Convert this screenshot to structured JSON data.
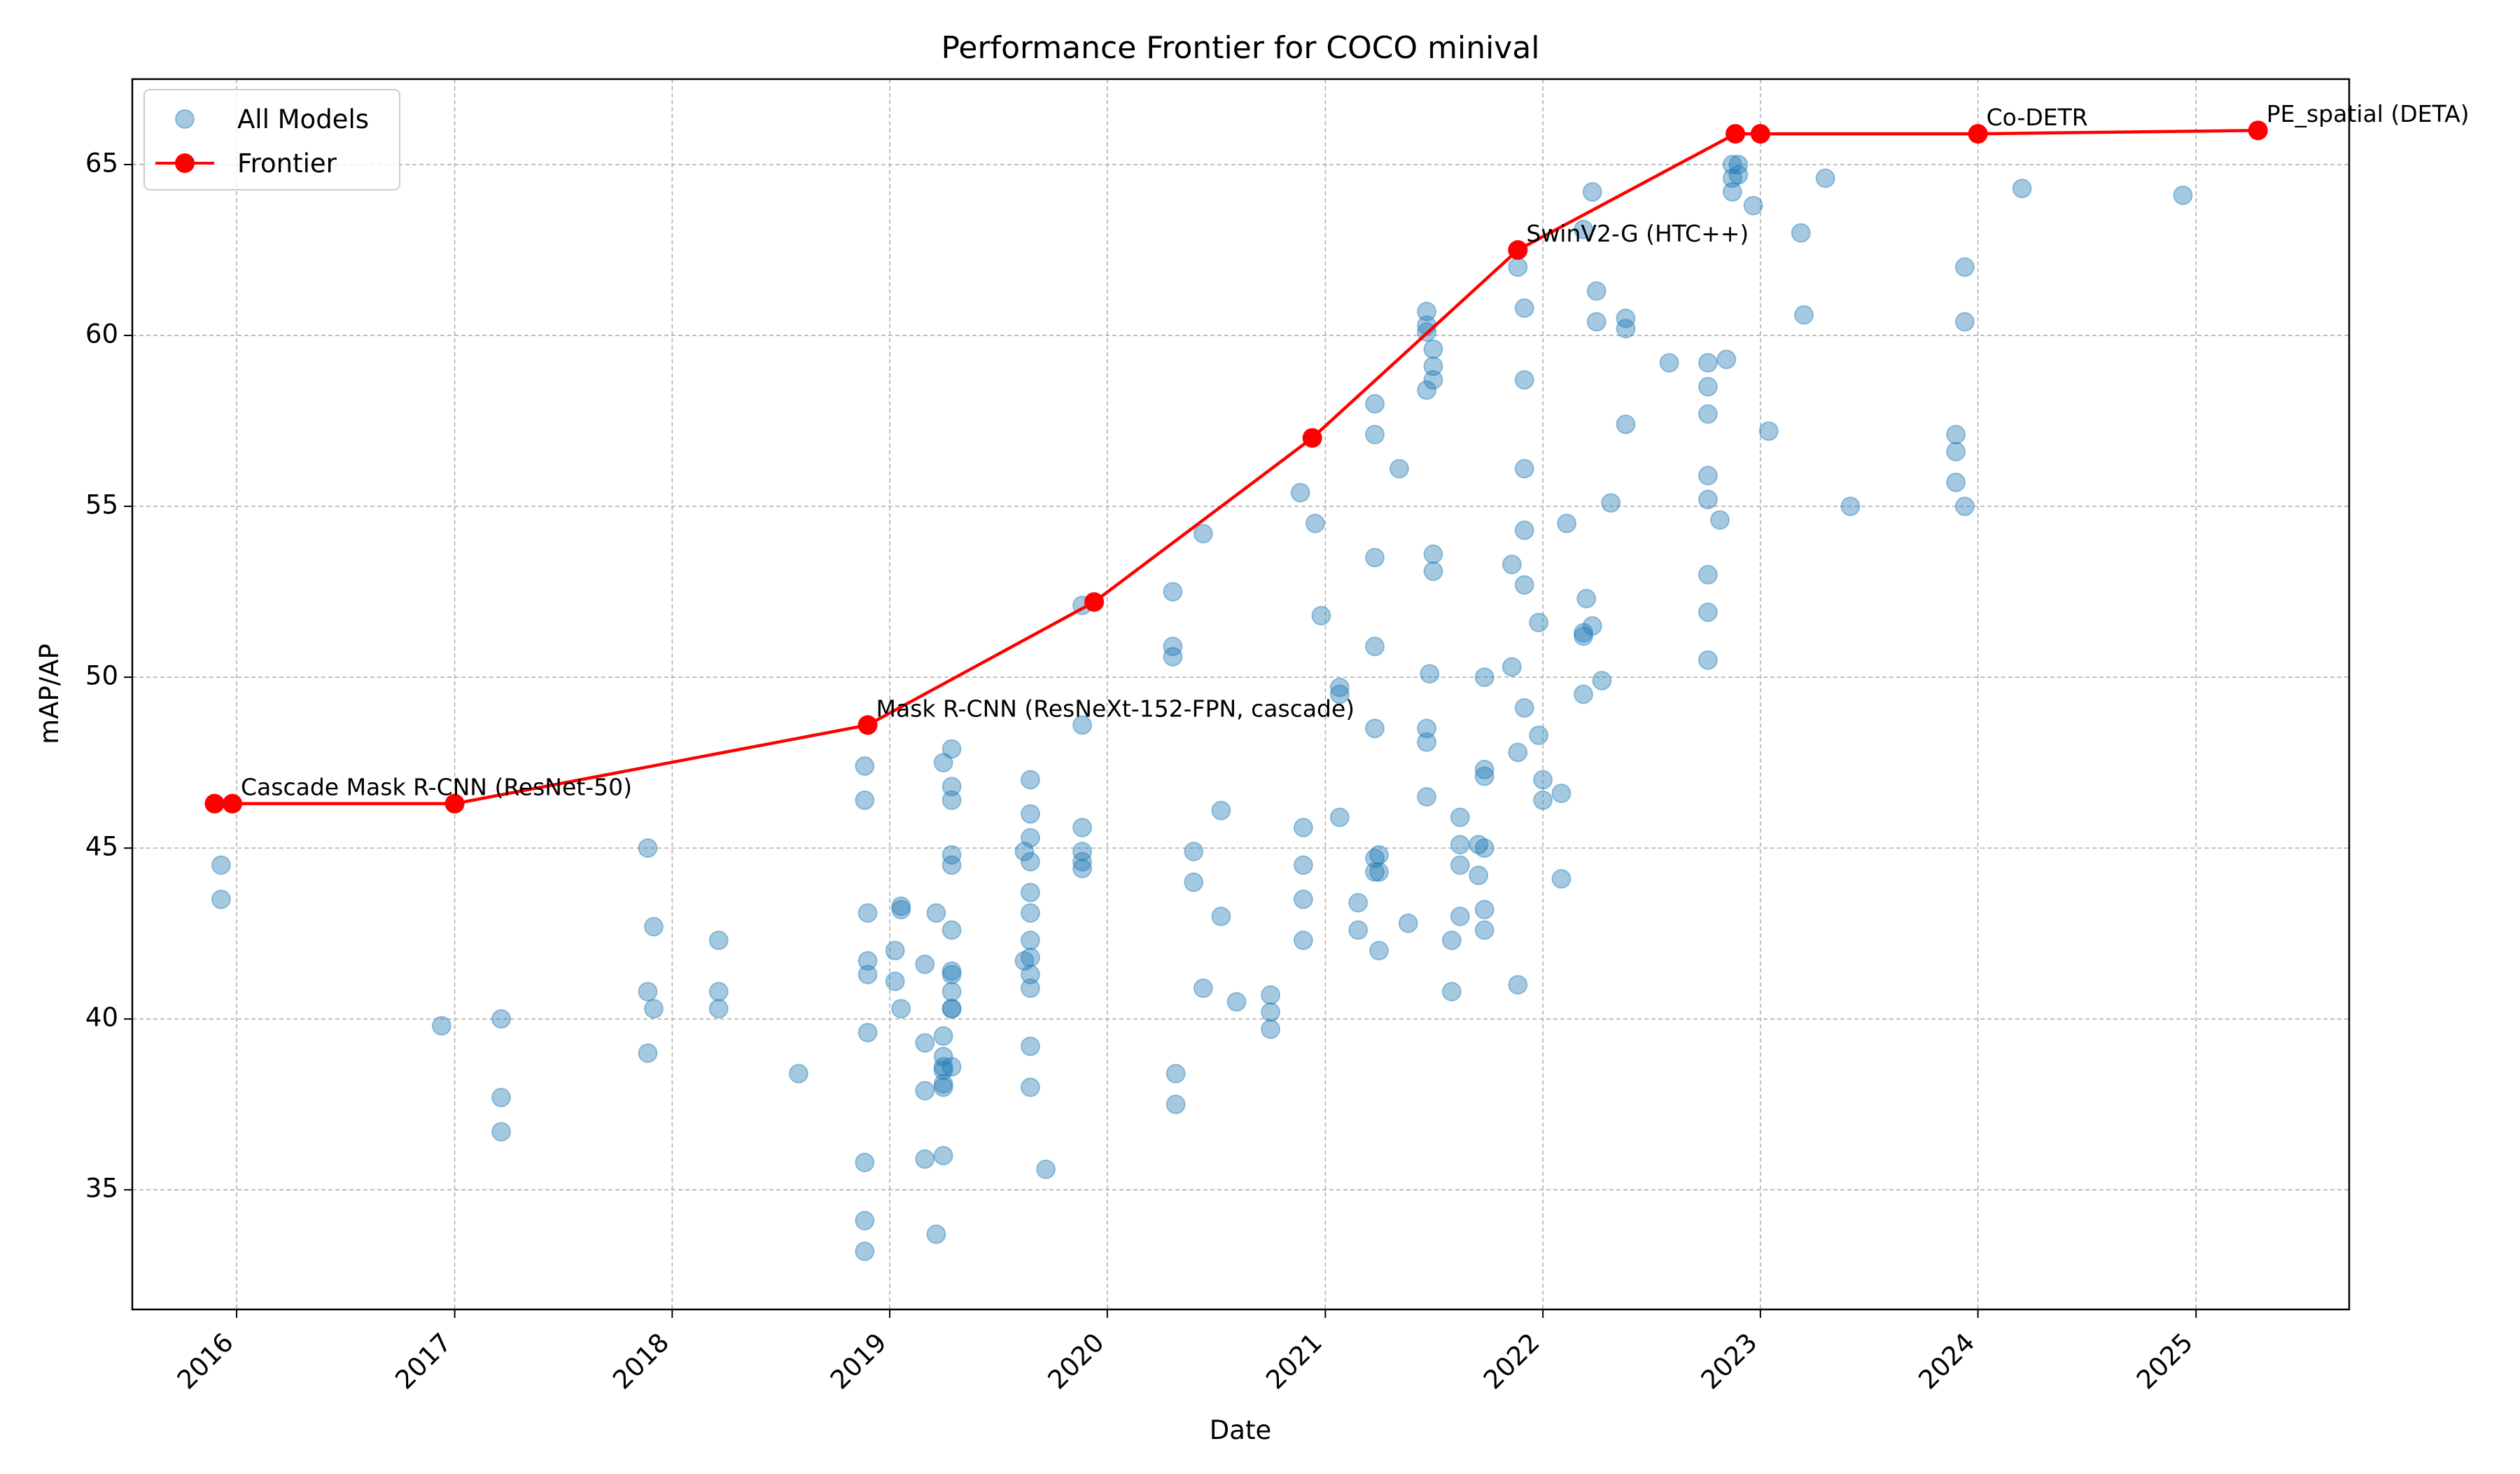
{
  "chart_data": {
    "type": "scatter",
    "title": "Performance Frontier for COCO minival",
    "xlabel": "Date",
    "ylabel": "mAP/AP",
    "xlim": [
      "2015-07-10",
      "2025-09-15"
    ],
    "ylim": [
      31.5,
      67.5
    ],
    "x_ticks": [
      {
        "date": "2016-01-01",
        "label": "2016"
      },
      {
        "date": "2017-01-01",
        "label": "2017"
      },
      {
        "date": "2018-01-01",
        "label": "2018"
      },
      {
        "date": "2019-01-01",
        "label": "2019"
      },
      {
        "date": "2020-01-01",
        "label": "2020"
      },
      {
        "date": "2021-01-01",
        "label": "2021"
      },
      {
        "date": "2022-01-01",
        "label": "2022"
      },
      {
        "date": "2023-01-01",
        "label": "2023"
      },
      {
        "date": "2024-01-01",
        "label": "2024"
      },
      {
        "date": "2025-01-01",
        "label": "2025"
      }
    ],
    "y_ticks": [
      35,
      40,
      45,
      50,
      55,
      60,
      65
    ],
    "grid": true,
    "legend": {
      "position": "top-left",
      "entries": [
        {
          "label": "All Models",
          "kind": "scatter"
        },
        {
          "label": "Frontier",
          "kind": "line"
        }
      ]
    },
    "colors": {
      "scatter_fill": "#1f77b4",
      "scatter_opacity": 0.4,
      "frontier": "#ff0000"
    },
    "series": [
      {
        "name": "All Models",
        "kind": "scatter",
        "points": [
          [
            "2015-12-06",
            44.5
          ],
          [
            "2015-12-06",
            43.5
          ],
          [
            "2016-12-10",
            39.8
          ],
          [
            "2017-03-20",
            40.0
          ],
          [
            "2017-03-20",
            37.7
          ],
          [
            "2017-03-20",
            36.7
          ],
          [
            "2017-11-21",
            45.0
          ],
          [
            "2017-11-21",
            40.8
          ],
          [
            "2017-11-21",
            39.0
          ],
          [
            "2017-12-01",
            42.7
          ],
          [
            "2017-12-01",
            40.3
          ],
          [
            "2018-03-20",
            42.3
          ],
          [
            "2018-03-20",
            40.8
          ],
          [
            "2018-03-20",
            40.3
          ],
          [
            "2018-08-01",
            38.4
          ],
          [
            "2018-11-20",
            47.4
          ],
          [
            "2018-11-20",
            46.4
          ],
          [
            "2018-11-20",
            35.8
          ],
          [
            "2018-11-20",
            34.1
          ],
          [
            "2018-11-20",
            33.2
          ],
          [
            "2018-11-25",
            43.1
          ],
          [
            "2018-11-25",
            41.7
          ],
          [
            "2018-11-25",
            41.3
          ],
          [
            "2018-11-25",
            39.6
          ],
          [
            "2019-01-10",
            42.0
          ],
          [
            "2019-01-10",
            41.1
          ],
          [
            "2019-01-20",
            43.3
          ],
          [
            "2019-01-20",
            43.2
          ],
          [
            "2019-01-20",
            40.3
          ],
          [
            "2019-03-01",
            41.6
          ],
          [
            "2019-03-01",
            39.3
          ],
          [
            "2019-03-01",
            37.9
          ],
          [
            "2019-03-01",
            35.9
          ],
          [
            "2019-03-20",
            43.1
          ],
          [
            "2019-03-20",
            33.7
          ],
          [
            "2019-04-01",
            47.5
          ],
          [
            "2019-04-01",
            39.5
          ],
          [
            "2019-04-01",
            38.9
          ],
          [
            "2019-04-01",
            38.6
          ],
          [
            "2019-04-01",
            38.5
          ],
          [
            "2019-04-01",
            38.1
          ],
          [
            "2019-04-01",
            38.0
          ],
          [
            "2019-04-01",
            36.0
          ],
          [
            "2019-04-15",
            47.9
          ],
          [
            "2019-04-15",
            46.8
          ],
          [
            "2019-04-15",
            46.4
          ],
          [
            "2019-04-15",
            44.8
          ],
          [
            "2019-04-15",
            44.5
          ],
          [
            "2019-04-15",
            42.6
          ],
          [
            "2019-04-15",
            41.4
          ],
          [
            "2019-04-15",
            41.3
          ],
          [
            "2019-04-15",
            40.8
          ],
          [
            "2019-04-15",
            40.3
          ],
          [
            "2019-04-15",
            40.3
          ],
          [
            "2019-04-15",
            38.6
          ],
          [
            "2019-08-15",
            44.9
          ],
          [
            "2019-08-15",
            41.7
          ],
          [
            "2019-08-25",
            47.0
          ],
          [
            "2019-08-25",
            46.0
          ],
          [
            "2019-08-25",
            45.3
          ],
          [
            "2019-08-25",
            44.6
          ],
          [
            "2019-08-25",
            43.7
          ],
          [
            "2019-08-25",
            43.1
          ],
          [
            "2019-08-25",
            42.3
          ],
          [
            "2019-08-25",
            41.8
          ],
          [
            "2019-08-25",
            41.3
          ],
          [
            "2019-08-25",
            40.9
          ],
          [
            "2019-08-25",
            39.2
          ],
          [
            "2019-08-25",
            38.0
          ],
          [
            "2019-09-20",
            35.6
          ],
          [
            "2019-11-20",
            52.1
          ],
          [
            "2019-11-20",
            48.6
          ],
          [
            "2019-11-20",
            45.6
          ],
          [
            "2019-11-20",
            44.9
          ],
          [
            "2019-11-20",
            44.6
          ],
          [
            "2019-11-20",
            44.4
          ],
          [
            "2020-04-20",
            52.5
          ],
          [
            "2020-04-20",
            50.9
          ],
          [
            "2020-04-20",
            50.6
          ],
          [
            "2020-04-25",
            38.4
          ],
          [
            "2020-04-25",
            37.5
          ],
          [
            "2020-05-25",
            44.9
          ],
          [
            "2020-05-25",
            44.0
          ],
          [
            "2020-06-10",
            54.2
          ],
          [
            "2020-06-10",
            40.9
          ],
          [
            "2020-07-10",
            46.1
          ],
          [
            "2020-07-10",
            43.0
          ],
          [
            "2020-08-05",
            40.5
          ],
          [
            "2020-10-01",
            40.7
          ],
          [
            "2020-10-01",
            40.2
          ],
          [
            "2020-10-01",
            39.7
          ],
          [
            "2020-11-20",
            55.4
          ],
          [
            "2020-11-25",
            45.6
          ],
          [
            "2020-11-25",
            44.5
          ],
          [
            "2020-11-25",
            43.5
          ],
          [
            "2020-11-25",
            42.3
          ],
          [
            "2020-12-15",
            54.5
          ],
          [
            "2020-12-25",
            51.8
          ],
          [
            "2021-01-25",
            49.7
          ],
          [
            "2021-01-25",
            49.5
          ],
          [
            "2021-01-25",
            45.9
          ],
          [
            "2021-02-25",
            43.4
          ],
          [
            "2021-02-25",
            42.6
          ],
          [
            "2021-03-25",
            58.0
          ],
          [
            "2021-03-25",
            57.1
          ],
          [
            "2021-03-25",
            53.5
          ],
          [
            "2021-03-25",
            50.9
          ],
          [
            "2021-03-25",
            48.5
          ],
          [
            "2021-03-25",
            44.7
          ],
          [
            "2021-03-25",
            44.3
          ],
          [
            "2021-04-01",
            44.8
          ],
          [
            "2021-04-01",
            44.3
          ],
          [
            "2021-04-01",
            42.0
          ],
          [
            "2021-05-05",
            56.1
          ],
          [
            "2021-05-20",
            42.8
          ],
          [
            "2021-06-20",
            60.7
          ],
          [
            "2021-06-20",
            60.3
          ],
          [
            "2021-06-20",
            60.1
          ],
          [
            "2021-06-20",
            58.4
          ],
          [
            "2021-06-20",
            48.5
          ],
          [
            "2021-06-20",
            48.1
          ],
          [
            "2021-06-20",
            46.5
          ],
          [
            "2021-06-25",
            50.1
          ],
          [
            "2021-07-01",
            59.6
          ],
          [
            "2021-07-01",
            59.1
          ],
          [
            "2021-07-01",
            58.7
          ],
          [
            "2021-07-01",
            53.6
          ],
          [
            "2021-07-01",
            53.1
          ],
          [
            "2021-08-01",
            42.3
          ],
          [
            "2021-08-01",
            40.8
          ],
          [
            "2021-08-15",
            45.9
          ],
          [
            "2021-08-15",
            45.1
          ],
          [
            "2021-08-15",
            44.5
          ],
          [
            "2021-08-15",
            43.0
          ],
          [
            "2021-09-15",
            45.1
          ],
          [
            "2021-09-15",
            44.2
          ],
          [
            "2021-09-25",
            50.0
          ],
          [
            "2021-09-25",
            47.3
          ],
          [
            "2021-09-25",
            47.1
          ],
          [
            "2021-09-25",
            45.0
          ],
          [
            "2021-09-25",
            43.2
          ],
          [
            "2021-09-25",
            42.6
          ],
          [
            "2021-11-10",
            53.3
          ],
          [
            "2021-11-10",
            50.3
          ],
          [
            "2021-11-20",
            62.0
          ],
          [
            "2021-11-20",
            47.8
          ],
          [
            "2021-11-20",
            41.0
          ],
          [
            "2021-12-01",
            60.8
          ],
          [
            "2021-12-01",
            58.7
          ],
          [
            "2021-12-01",
            56.1
          ],
          [
            "2021-12-01",
            54.3
          ],
          [
            "2021-12-01",
            52.7
          ],
          [
            "2021-12-01",
            49.1
          ],
          [
            "2021-12-25",
            51.6
          ],
          [
            "2021-12-25",
            48.3
          ],
          [
            "2022-01-01",
            47.0
          ],
          [
            "2022-01-01",
            46.4
          ],
          [
            "2022-02-01",
            46.6
          ],
          [
            "2022-02-01",
            44.1
          ],
          [
            "2022-02-10",
            54.5
          ],
          [
            "2022-03-10",
            63.1
          ],
          [
            "2022-03-10",
            51.3
          ],
          [
            "2022-03-10",
            51.2
          ],
          [
            "2022-03-10",
            49.5
          ],
          [
            "2022-03-15",
            52.3
          ],
          [
            "2022-03-25",
            64.2
          ],
          [
            "2022-03-25",
            51.5
          ],
          [
            "2022-04-01",
            61.3
          ],
          [
            "2022-04-01",
            60.4
          ],
          [
            "2022-04-10",
            49.9
          ],
          [
            "2022-04-25",
            55.1
          ],
          [
            "2022-05-20",
            60.5
          ],
          [
            "2022-05-20",
            60.2
          ],
          [
            "2022-05-20",
            57.4
          ],
          [
            "2022-08-01",
            59.2
          ],
          [
            "2022-10-05",
            59.2
          ],
          [
            "2022-10-05",
            58.5
          ],
          [
            "2022-10-05",
            57.7
          ],
          [
            "2022-10-05",
            55.9
          ],
          [
            "2022-10-05",
            55.2
          ],
          [
            "2022-10-05",
            53.0
          ],
          [
            "2022-10-05",
            51.9
          ],
          [
            "2022-10-05",
            50.5
          ],
          [
            "2022-10-25",
            54.6
          ],
          [
            "2022-11-05",
            59.3
          ],
          [
            "2022-11-15",
            65.0
          ],
          [
            "2022-11-15",
            64.6
          ],
          [
            "2022-11-15",
            64.2
          ],
          [
            "2022-11-25",
            65.0
          ],
          [
            "2022-11-25",
            64.7
          ],
          [
            "2022-12-20",
            63.8
          ],
          [
            "2023-01-15",
            57.2
          ],
          [
            "2023-03-10",
            63.0
          ],
          [
            "2023-03-15",
            60.6
          ],
          [
            "2023-04-20",
            64.6
          ],
          [
            "2023-06-01",
            55.0
          ],
          [
            "2023-11-25",
            57.1
          ],
          [
            "2023-11-25",
            56.6
          ],
          [
            "2023-11-25",
            55.7
          ],
          [
            "2023-12-10",
            62.0
          ],
          [
            "2023-12-10",
            60.4
          ],
          [
            "2023-12-10",
            55.0
          ],
          [
            "2024-03-15",
            64.3
          ],
          [
            "2024-12-10",
            64.1
          ]
        ]
      },
      {
        "name": "Frontier",
        "kind": "line",
        "points": [
          [
            "2015-11-25",
            46.3
          ],
          [
            "2015-12-25",
            46.3
          ],
          [
            "2017-01-01",
            46.3
          ],
          [
            "2018-11-25",
            48.6
          ],
          [
            "2019-12-10",
            52.2
          ],
          [
            "2020-12-10",
            57.0
          ],
          [
            "2021-11-20",
            62.5
          ],
          [
            "2022-11-20",
            65.9
          ],
          [
            "2023-01-01",
            65.9
          ],
          [
            "2024-01-01",
            65.9
          ],
          [
            "2025-04-15",
            66.0
          ]
        ]
      }
    ],
    "annotations": [
      {
        "text": "Cascade Mask R-CNN (ResNet-50)",
        "date": "2015-12-25",
        "y": 46.3
      },
      {
        "text": "Mask R-CNN (ResNeXt-152-FPN, cascade)",
        "date": "2018-11-25",
        "y": 48.6
      },
      {
        "text": "SwinV2-G (HTC++)",
        "date": "2021-11-20",
        "y": 62.5
      },
      {
        "text": "Co-DETR",
        "date": "2024-01-01",
        "y": 65.9
      },
      {
        "text": "PE_spatial (DETA)",
        "date": "2025-04-15",
        "y": 66.0
      }
    ]
  }
}
